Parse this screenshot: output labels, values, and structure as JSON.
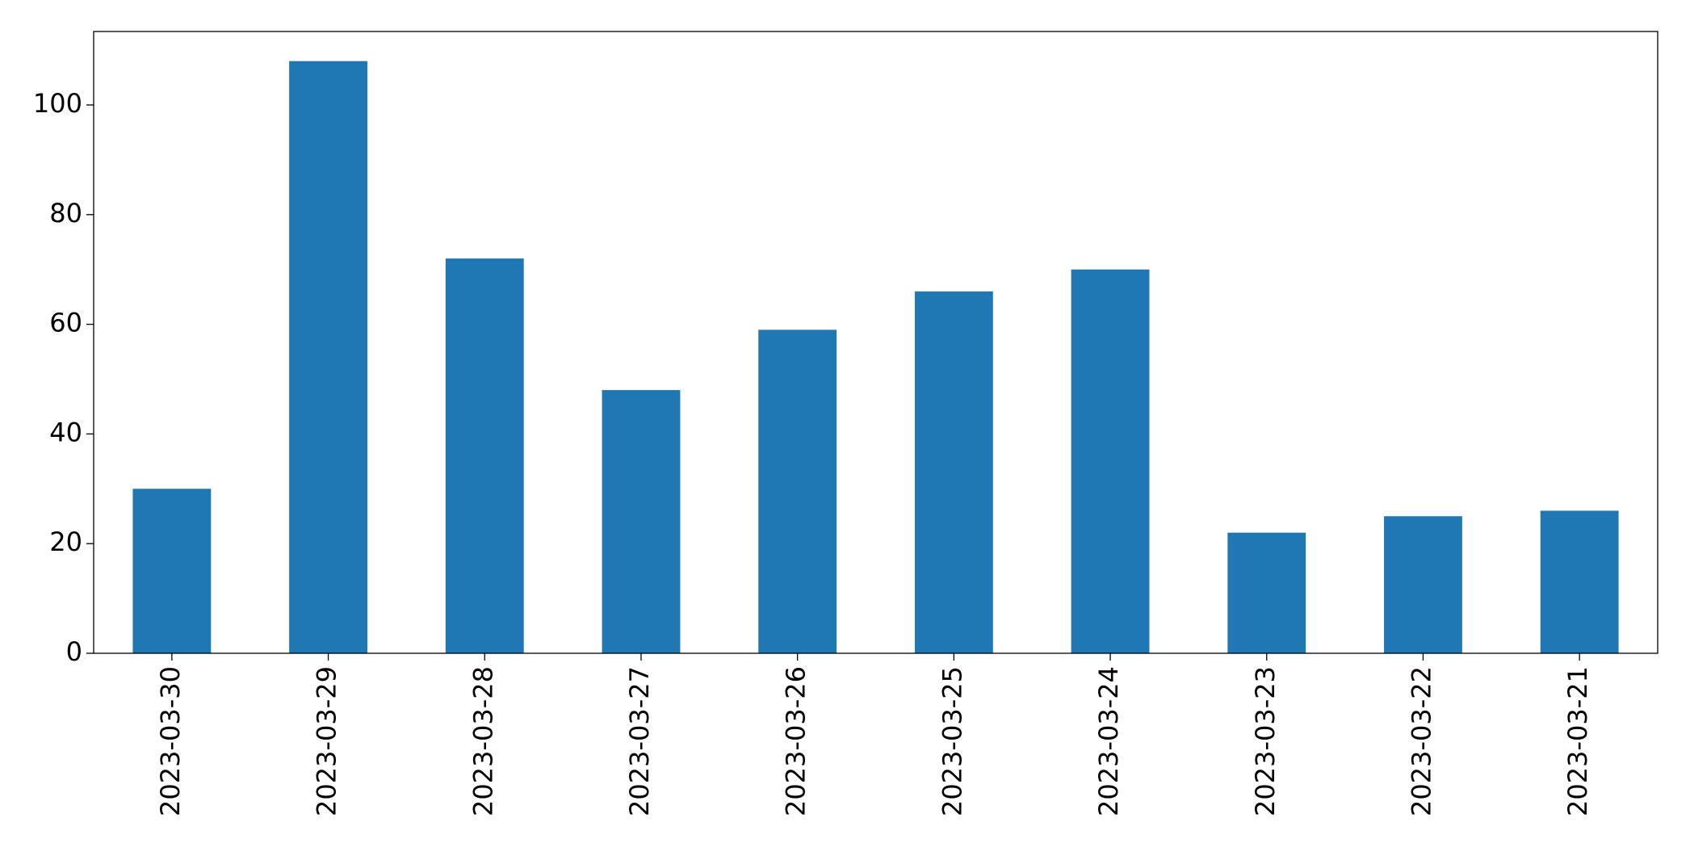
{
  "chart_data": {
    "type": "bar",
    "categories": [
      "2023-03-30",
      "2023-03-29",
      "2023-03-28",
      "2023-03-27",
      "2023-03-26",
      "2023-03-25",
      "2023-03-24",
      "2023-03-23",
      "2023-03-22",
      "2023-03-21"
    ],
    "values": [
      30,
      108,
      72,
      48,
      59,
      66,
      70,
      22,
      25,
      26
    ],
    "color": "#1f77b4",
    "ylim": [
      0,
      113.4
    ],
    "yticks": [
      0,
      20,
      40,
      60,
      80,
      100
    ],
    "grid": false
  }
}
